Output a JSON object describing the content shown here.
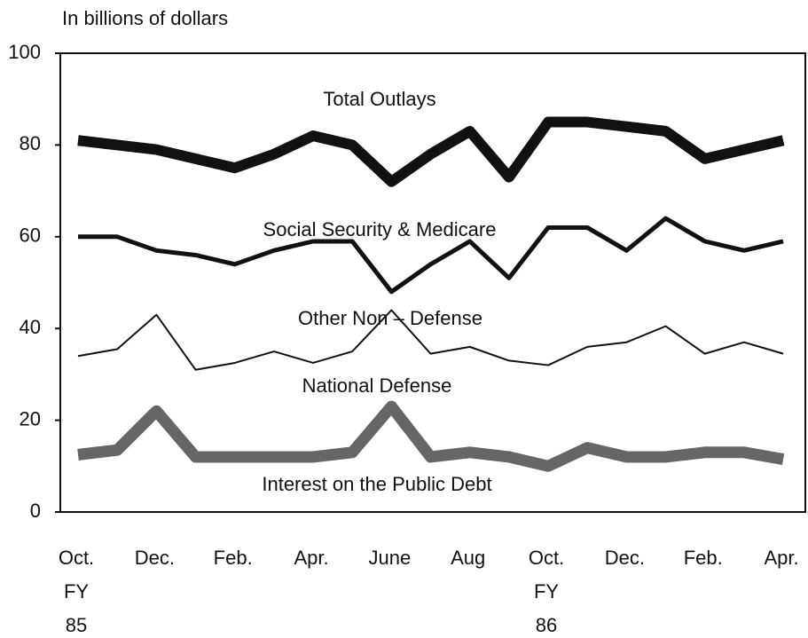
{
  "chart_data": {
    "type": "line",
    "ylabel": "In billions of dollars",
    "categories": [
      [
        "Oct.",
        "FY",
        "85"
      ],
      null,
      [
        "Dec."
      ],
      null,
      [
        "Feb."
      ],
      null,
      [
        "Apr."
      ],
      null,
      [
        "June"
      ],
      null,
      [
        "Aug"
      ],
      null,
      [
        "Oct.",
        "FY",
        "86"
      ],
      null,
      [
        "Dec."
      ],
      null,
      [
        "Feb."
      ],
      null,
      [
        "Apr."
      ]
    ],
    "series": [
      {
        "name": "Total Outlays",
        "color": "#111111",
        "values": [
          81,
          80,
          79,
          77,
          75,
          78,
          82,
          80,
          72,
          78,
          83,
          73,
          85,
          85,
          84,
          83,
          77,
          79,
          81
        ]
      },
      {
        "name": "Social Security & Medicare",
        "color": "#111111",
        "values": [
          60,
          60,
          57,
          56,
          54,
          57,
          59,
          59,
          48,
          54,
          59,
          51,
          62,
          62,
          57,
          64,
          59,
          57,
          59
        ]
      },
      {
        "name": "Other Non – Defense",
        "color": "#111111",
        "values": [
          34,
          35.5,
          43,
          31,
          32.5,
          35,
          32.5,
          35,
          44,
          34.5,
          36,
          33,
          32,
          36,
          37,
          40.5,
          34.5,
          37,
          34.5
        ]
      },
      {
        "name": "National Defense",
        "color": "#666666",
        "values": [
          12.5,
          13.5,
          22,
          12,
          12,
          12,
          12,
          13,
          23,
          12,
          13,
          12,
          10,
          14,
          12,
          12,
          13,
          13,
          11.5
        ]
      }
    ],
    "annotations": [
      "Interest on the Public Debt"
    ],
    "ylim": [
      0,
      100
    ],
    "yticks": [
      0,
      20,
      40,
      60,
      80,
      100
    ]
  }
}
